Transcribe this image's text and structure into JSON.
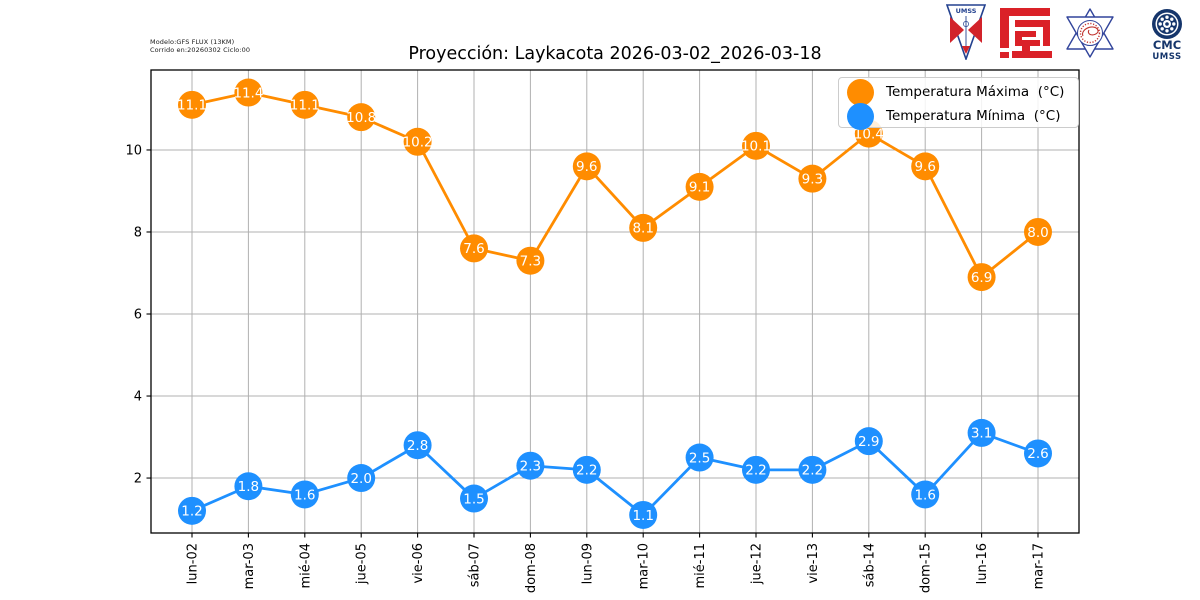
{
  "header": {
    "model_line1": "Modelo:GFS FLUX (13KM)",
    "model_line2": "Corrido en:20260302 Ciclo:00"
  },
  "title": "Proyección: Laykacota 2026-03-02_2026-03-18",
  "logos": {
    "umss_text": "UMSS",
    "cmc_line1": "CMC",
    "cmc_line2": "UMSS"
  },
  "chart_data": {
    "type": "line",
    "title": "Proyección: Laykacota 2026-03-02_2026-03-18",
    "categories": [
      "lun-02",
      "mar-03",
      "mié-04",
      "jue-05",
      "vie-06",
      "sáb-07",
      "dom-08",
      "lun-09",
      "mar-10",
      "mié-11",
      "jue-12",
      "vie-13",
      "sáb-14",
      "dom-15",
      "lun-16",
      "mar-17"
    ],
    "series": [
      {
        "name": "Temperatura Máxima  (°C)",
        "color": "#FF8C00",
        "values": [
          11.1,
          11.4,
          11.1,
          10.8,
          10.2,
          7.6,
          7.3,
          9.6,
          8.1,
          9.1,
          10.1,
          9.3,
          10.4,
          9.6,
          6.9,
          8.0
        ]
      },
      {
        "name": "Temperatura Mínima  (°C)",
        "color": "#1E90FF",
        "values": [
          1.2,
          1.8,
          1.6,
          2.0,
          2.8,
          1.5,
          2.3,
          2.2,
          1.1,
          2.5,
          2.2,
          2.2,
          2.9,
          1.6,
          3.1,
          2.6
        ]
      }
    ],
    "yticks": [
      2,
      4,
      6,
      8,
      10
    ],
    "ylim": [
      0.66,
      11.95
    ],
    "grid": true,
    "grid_color": "#b0b0b0",
    "point_labels": true,
    "legend_position": "upper right",
    "xlabel": "",
    "ylabel": ""
  }
}
